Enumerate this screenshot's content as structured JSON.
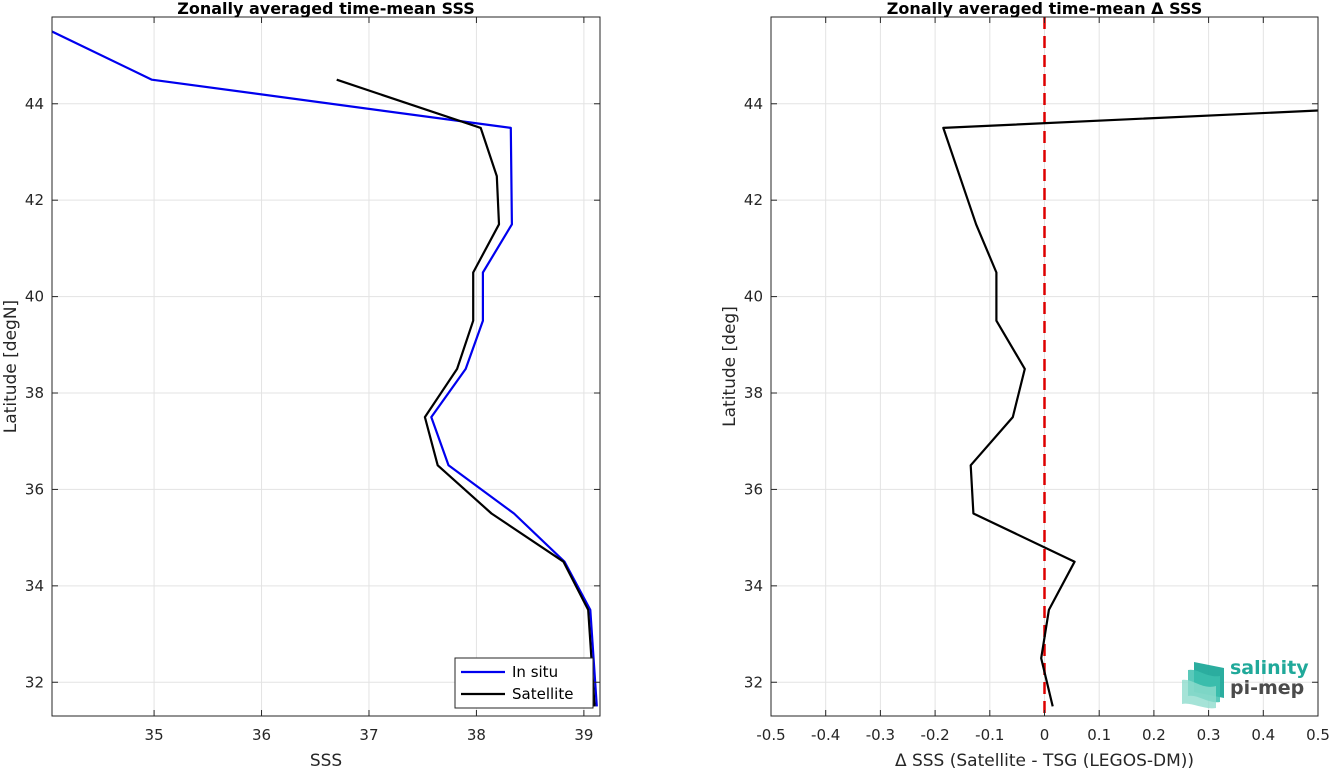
{
  "chart_data": [
    {
      "type": "line",
      "title": "Zonally averaged time-mean SSS",
      "xlabel": "SSS",
      "ylabel": "Latitude [degN]",
      "xlim": [
        34.05,
        39.15
      ],
      "ylim": [
        31.3,
        45.8
      ],
      "xticks": [
        35,
        36,
        37,
        38,
        39
      ],
      "yticks": [
        32,
        34,
        36,
        38,
        40,
        42,
        44
      ],
      "grid": true,
      "legend": "bottom-right",
      "series": [
        {
          "name": "In situ",
          "color": "#0000ee",
          "points": [
            [
              34.05,
              45.5
            ],
            [
              34.98,
              44.5
            ],
            [
              38.32,
              43.5
            ],
            [
              38.33,
              41.5
            ],
            [
              38.06,
              40.5
            ],
            [
              38.06,
              39.5
            ],
            [
              37.9,
              38.5
            ],
            [
              37.58,
              37.5
            ],
            [
              37.74,
              36.5
            ],
            [
              38.35,
              35.5
            ],
            [
              38.82,
              34.5
            ],
            [
              39.06,
              33.5
            ],
            [
              39.12,
              31.5
            ]
          ]
        },
        {
          "name": "Satellite",
          "color": "#000000",
          "points": [
            [
              36.7,
              44.5
            ],
            [
              38.04,
              43.5
            ],
            [
              38.19,
              42.5
            ],
            [
              38.21,
              41.5
            ],
            [
              37.97,
              40.5
            ],
            [
              37.97,
              39.5
            ],
            [
              37.82,
              38.5
            ],
            [
              37.52,
              37.5
            ],
            [
              37.64,
              36.5
            ],
            [
              38.14,
              35.5
            ],
            [
              38.81,
              34.5
            ],
            [
              39.04,
              33.5
            ],
            [
              39.1,
              31.5
            ]
          ]
        }
      ]
    },
    {
      "type": "line",
      "title": "Zonally averaged time-mean Δ SSS",
      "xlabel": "Δ SSS (Satellite - TSG (LEGOS-DM))",
      "ylabel": "Latitude [deg]",
      "xlim": [
        -0.5,
        0.5
      ],
      "ylim": [
        31.3,
        45.8
      ],
      "xticks": [
        -0.5,
        -0.4,
        -0.3,
        -0.2,
        -0.1,
        0,
        0.1,
        0.2,
        0.3,
        0.4,
        0.5
      ],
      "xticklabels": [
        "-0.5",
        "-0.4",
        "-0.3",
        "-0.2",
        "-0.1",
        "0",
        "0.1",
        "0.2",
        "0.3",
        "0.4",
        "0.5"
      ],
      "yticks": [
        32,
        34,
        36,
        38,
        40,
        42,
        44
      ],
      "grid": true,
      "reference_line": {
        "x": 0,
        "color": "#dd0000",
        "style": "dashed"
      },
      "series": [
        {
          "color": "#000000",
          "points": [
            [
              0.5,
              43.86
            ],
            [
              -0.185,
              43.5
            ],
            [
              -0.125,
              41.5
            ],
            [
              -0.088,
              40.5
            ],
            [
              -0.088,
              39.5
            ],
            [
              -0.036,
              38.5
            ],
            [
              -0.058,
              37.5
            ],
            [
              -0.135,
              36.5
            ],
            [
              -0.13,
              35.5
            ],
            [
              0.055,
              34.5
            ],
            [
              0.008,
              33.5
            ],
            [
              -0.006,
              32.5
            ],
            [
              0.015,
              31.5
            ]
          ]
        }
      ]
    }
  ],
  "logo": {
    "line1": "salinity",
    "line2": "pi-mep",
    "color": "#20a99a"
  }
}
